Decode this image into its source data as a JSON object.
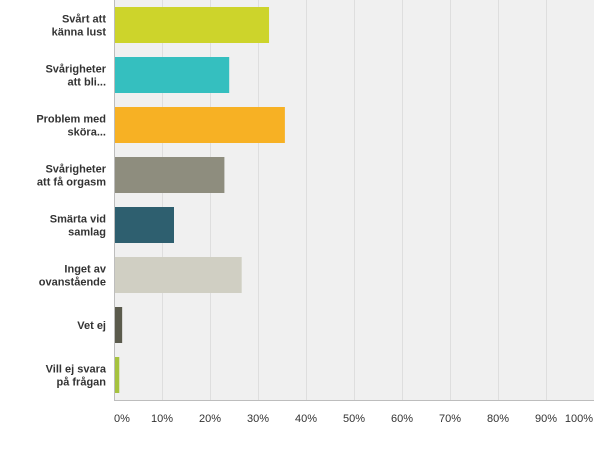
{
  "chart_data": {
    "type": "bar",
    "orientation": "horizontal",
    "categories": [
      [
        "Svårt att",
        "känna lust"
      ],
      [
        "Svårigheter",
        "att bli..."
      ],
      [
        "Problem med",
        "sköra..."
      ],
      [
        "Svårigheter",
        "att få orgasm"
      ],
      [
        "Smärta vid",
        "samlag"
      ],
      [
        "Inget av",
        "ovanstående"
      ],
      [
        "Vet ej"
      ],
      [
        "Vill ej svara",
        "på frågan"
      ]
    ],
    "values": [
      32.3,
      24.0,
      35.6,
      23.0,
      12.5,
      26.6,
      1.7,
      1.1
    ],
    "colors": [
      "#cdd42b",
      "#35bfbf",
      "#f7b124",
      "#8e8d7e",
      "#2e5f6f",
      "#d0cfc3",
      "#5b5b4d",
      "#a6c33f"
    ],
    "xlim": [
      0,
      100
    ],
    "xticks": [
      "0%",
      "10%",
      "20%",
      "30%",
      "40%",
      "50%",
      "60%",
      "70%",
      "80%",
      "90%",
      "100%"
    ],
    "grid": true,
    "title": "",
    "xlabel": "",
    "ylabel": ""
  }
}
